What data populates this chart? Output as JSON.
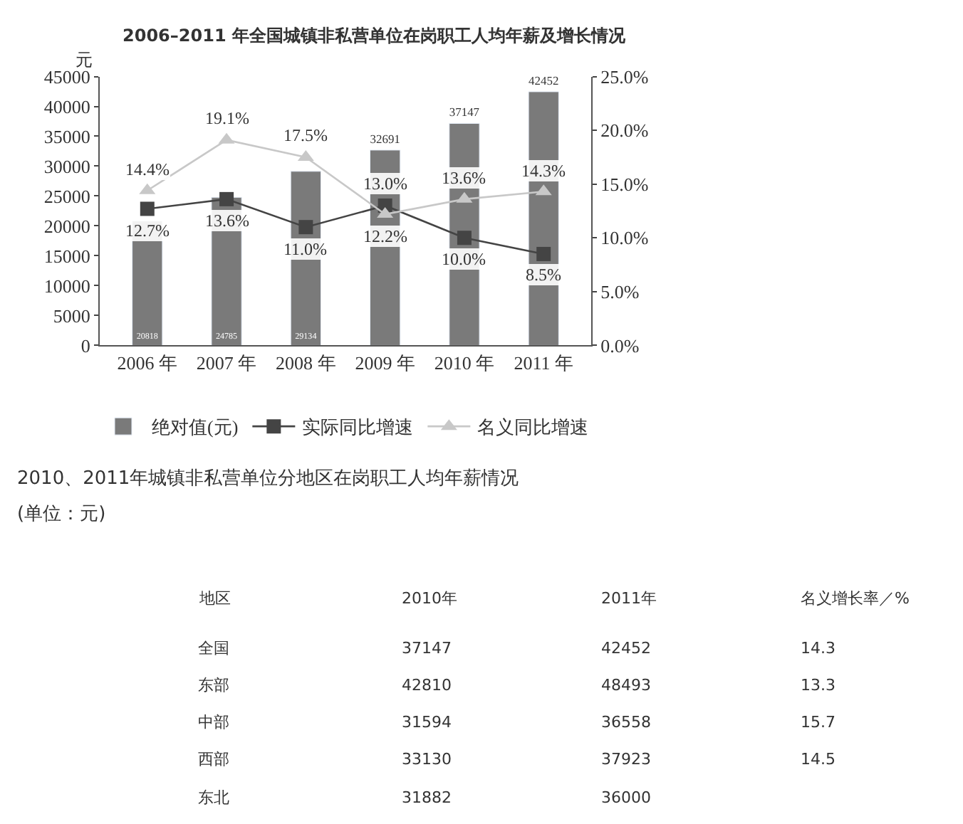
{
  "chart_data": [
    {
      "type": "bar",
      "title": "2006–2011 年全国城镇非私营单位在岗职工人均年薪及增长情况",
      "ylabel": "元",
      "categories": [
        "2006 年",
        "2007 年",
        "2008 年",
        "2009 年",
        "2010 年",
        "2011 年"
      ],
      "series": [
        {
          "name": "绝对值(元)",
          "type": "bar",
          "color": "#7a7a7a",
          "values": [
            20818,
            24785,
            29134,
            32691,
            37147,
            42452
          ],
          "value_labels": [
            "20818",
            "24785",
            "29134",
            "32691",
            "37147",
            "42452"
          ]
        },
        {
          "name": "实际同比增速",
          "type": "line",
          "axis": "y2",
          "marker": "square",
          "color": "#444444",
          "values": [
            12.7,
            13.6,
            11.0,
            13.0,
            10.0,
            8.5
          ],
          "value_labels": [
            "12.7%",
            "13.6%",
            "11.0%",
            "13.0%",
            "10.0%",
            "8.5%"
          ]
        },
        {
          "name": "名义同比增速",
          "type": "line",
          "axis": "y2",
          "marker": "triangle",
          "color": "#c8c8c8",
          "values": [
            14.4,
            19.1,
            17.5,
            12.2,
            13.6,
            14.3
          ],
          "value_labels": [
            "14.4%",
            "19.1%",
            "17.5%",
            "12.2%",
            "13.6%",
            "14.3%"
          ]
        }
      ],
      "ylim": [
        0,
        45000
      ],
      "yticks": [
        0,
        5000,
        10000,
        15000,
        20000,
        25000,
        30000,
        35000,
        40000,
        45000
      ],
      "y2lim": [
        0,
        25
      ],
      "y2ticks": [
        {
          "value": 0,
          "label": "0.0%"
        },
        {
          "value": 5,
          "label": "5.0%"
        },
        {
          "value": 10,
          "label": "10.0%"
        },
        {
          "value": 15,
          "label": "15.0%"
        },
        {
          "value": 20,
          "label": "20.0%"
        },
        {
          "value": 25,
          "label": "25.0%"
        }
      ],
      "legend": "bottom",
      "line_style": "solid"
    },
    {
      "type": "other",
      "title": "2010、2011年城镇非私营单位分地区在岗职工人均年薪情况",
      "subtitle": "(单位：元)",
      "annotations": [
        "地区",
        "2010年",
        "2011年",
        "名义增长率／%",
        "全国",
        "37147",
        "42452",
        "14.3",
        "东部",
        "42810",
        "48493",
        "13.3",
        "中部",
        "31594",
        "36558",
        "15.7",
        "西部",
        "33130",
        "37923",
        "14.5",
        "东北",
        "31882",
        "36000"
      ]
    }
  ]
}
